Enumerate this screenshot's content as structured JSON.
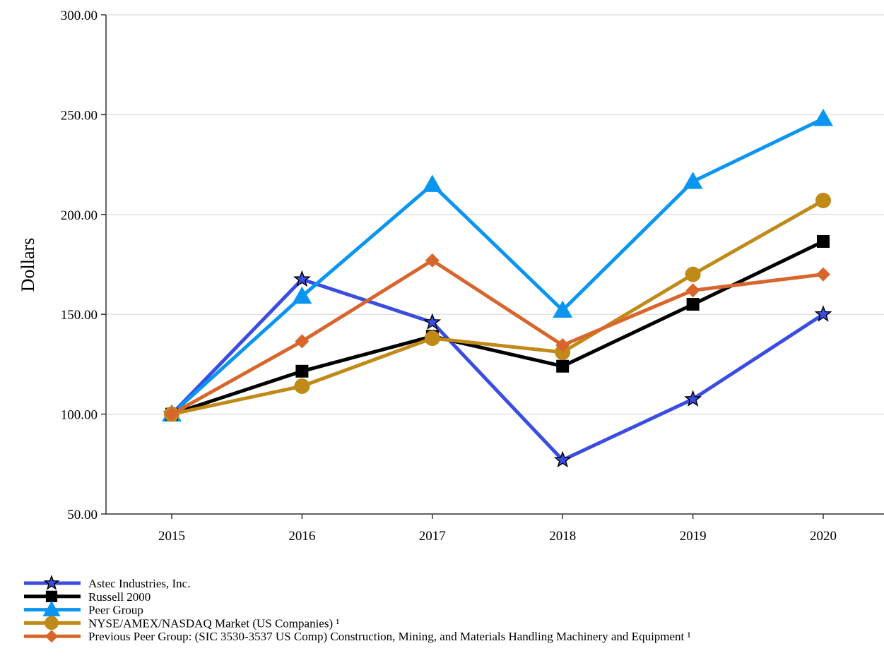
{
  "chart_data": {
    "type": "line",
    "title": "",
    "xlabel": "",
    "ylabel": "Dollars",
    "categories": [
      "2015",
      "2016",
      "2017",
      "2018",
      "2019",
      "2020"
    ],
    "ylim": [
      50,
      300
    ],
    "yticks": [
      "50.00",
      "100.00",
      "150.00",
      "200.00",
      "250.00",
      "300.00"
    ],
    "grid": "horizontal",
    "legend_position": "bottom-left",
    "series": [
      {
        "name": "Astec Industries, Inc.",
        "values": [
          100,
          167.5,
          146,
          77,
          107.5,
          150
        ],
        "color": "#3b4ce0",
        "marker": "star"
      },
      {
        "name": "Russell 2000",
        "values": [
          100,
          121.5,
          139,
          124,
          155,
          186.5
        ],
        "color": "#000000",
        "marker": "square"
      },
      {
        "name": "Peer Group",
        "values": [
          100,
          159,
          215,
          152,
          216.5,
          248
        ],
        "color": "#0a96f0",
        "marker": "triangle"
      },
      {
        "name": "NYSE/AMEX/NASDAQ Market (US Companies) ¹",
        "values": [
          100,
          114,
          138,
          131,
          170,
          207
        ],
        "color": "#c08a19",
        "marker": "circle"
      },
      {
        "name": "Previous Peer Group: (SIC 3530-3537 US Comp) Construction, Mining, and Materials Handling Machinery and Equipment ¹",
        "values": [
          100,
          136.5,
          177,
          134.5,
          162,
          170
        ],
        "color": "#d8662c",
        "marker": "diamond"
      }
    ]
  }
}
